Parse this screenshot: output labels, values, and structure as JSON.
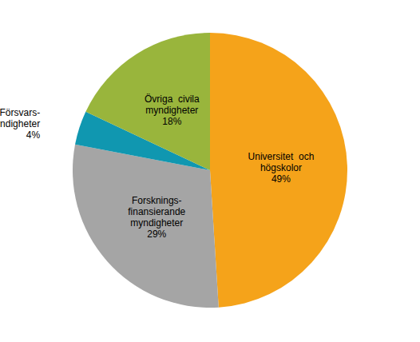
{
  "chart_data": {
    "type": "pie",
    "categories": [
      "Universitet  och\nhögskolor",
      "Forsknings-\nfinansierande\nmyndigheter",
      "Försvars-\nmyndigheter",
      "Övriga  civila\nmyndigheter"
    ],
    "values": [
      49,
      29,
      4,
      18
    ],
    "value_labels": [
      "49%",
      "29%",
      "4%",
      "18%"
    ],
    "colors": [
      "#f5a31a",
      "#a5a5a5",
      "#1097b0",
      "#99b53c"
    ],
    "data_labels": true
  }
}
